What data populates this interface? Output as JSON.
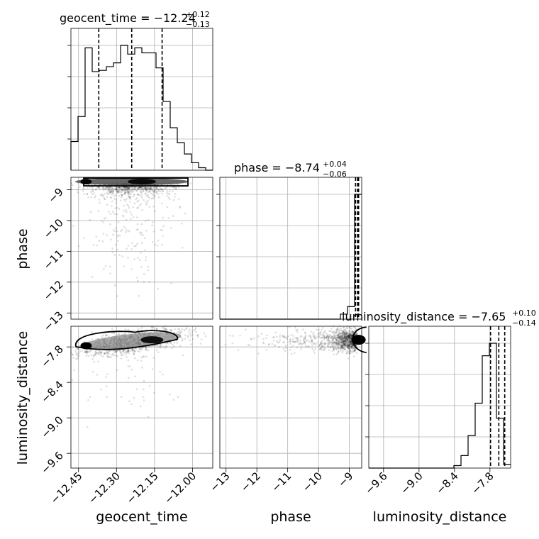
{
  "chart_data": {
    "type": "corner",
    "parameters": [
      "geocent_time",
      "phase",
      "luminosity_distance"
    ],
    "titles": [
      {
        "param": "geocent_time",
        "text": "geocent_time = −12.24",
        "upper": "+0.12",
        "lower": "−0.13",
        "median": -12.24,
        "plus": 0.12,
        "minus": 0.13
      },
      {
        "param": "phase",
        "text": "phase = −8.74",
        "upper": "+0.04",
        "lower": "−0.06",
        "median": -8.74,
        "plus": 0.04,
        "minus": 0.06
      },
      {
        "param": "luminosity_distance",
        "text": "luminosity_distance = −7.65",
        "upper": "+0.10",
        "lower": "−0.14",
        "median": -7.65,
        "plus": 0.1,
        "minus": 0.14
      }
    ],
    "ranges": {
      "geocent_time": [
        -12.48,
        -11.92
      ],
      "phase": [
        -13.2,
        -8.6
      ],
      "luminosity_distance": [
        -9.85,
        -7.45
      ]
    },
    "ticks": {
      "geocent_time": {
        "values": [
          -12.45,
          -12.3,
          -12.15,
          -12.0
        ],
        "labels": [
          "−12.45",
          "−12.30",
          "−12.15",
          "−12.00"
        ]
      },
      "phase": {
        "values": [
          -13,
          -12,
          -11,
          -10,
          -9
        ],
        "labels": [
          "−13",
          "−12",
          "−11",
          "−10",
          "−9"
        ]
      },
      "luminosity_distance": {
        "values": [
          -9.6,
          -9.0,
          -8.4,
          -7.8
        ],
        "labels": [
          "−9.6",
          "−9.0",
          "−8.4",
          "−7.8"
        ]
      }
    },
    "xlabels": [
      "geocent_time",
      "phase",
      "luminosity_distance"
    ],
    "ylabels": [
      "phase",
      "luminosity_distance"
    ],
    "hist_geocent_time": {
      "edges": [
        -12.48,
        -12.452,
        -12.424,
        -12.396,
        -12.368,
        -12.34,
        -12.312,
        -12.284,
        -12.256,
        -12.228,
        -12.2,
        -12.172,
        -12.144,
        -12.116,
        -12.088,
        -12.06,
        -12.032,
        -12.004,
        -11.976,
        -11.948,
        -11.92
      ],
      "counts": [
        0.23,
        0.43,
        0.98,
        0.79,
        0.8,
        0.83,
        0.86,
        1.0,
        0.93,
        0.98,
        0.94,
        0.94,
        0.82,
        0.55,
        0.34,
        0.22,
        0.13,
        0.06,
        0.02,
        0.0
      ]
    },
    "hist_phase": {
      "edges": [
        -13.2,
        -12.97,
        -12.74,
        -12.51,
        -12.28,
        -12.05,
        -11.82,
        -11.59,
        -11.36,
        -11.13,
        -10.9,
        -10.67,
        -10.44,
        -10.21,
        -9.98,
        -9.75,
        -9.52,
        -9.29,
        -9.06,
        -8.83,
        -8.6
      ],
      "counts": [
        0.0,
        0.0,
        0.0,
        0.0,
        0.0,
        0.0,
        0.0,
        0.0,
        0.0,
        0.0,
        0.0,
        0.0,
        0.0,
        0.0,
        0.0,
        0.0,
        0.0,
        0.04,
        0.1,
        1.0
      ]
    },
    "hist_luminosity_distance": {
      "edges": [
        -9.85,
        -9.73,
        -9.61,
        -9.49,
        -9.37,
        -9.25,
        -9.13,
        -9.01,
        -8.89,
        -8.77,
        -8.65,
        -8.53,
        -8.41,
        -8.29,
        -8.17,
        -8.05,
        -7.93,
        -7.81,
        -7.69,
        -7.57,
        -7.45
      ],
      "counts": [
        0.0,
        0.0,
        0.0,
        0.0,
        0.0,
        0.0,
        0.0,
        0.0,
        0.0,
        0.0,
        0.0,
        0.0,
        0.02,
        0.1,
        0.26,
        0.52,
        0.9,
        1.0,
        0.4,
        0.03
      ]
    },
    "quantiles": {
      "geocent_time": [
        -12.37,
        -12.24,
        -12.12
      ],
      "phase": [
        -8.8,
        -8.74,
        -8.7
      ],
      "luminosity_distance": [
        -7.79,
        -7.65,
        -7.55
      ]
    }
  }
}
